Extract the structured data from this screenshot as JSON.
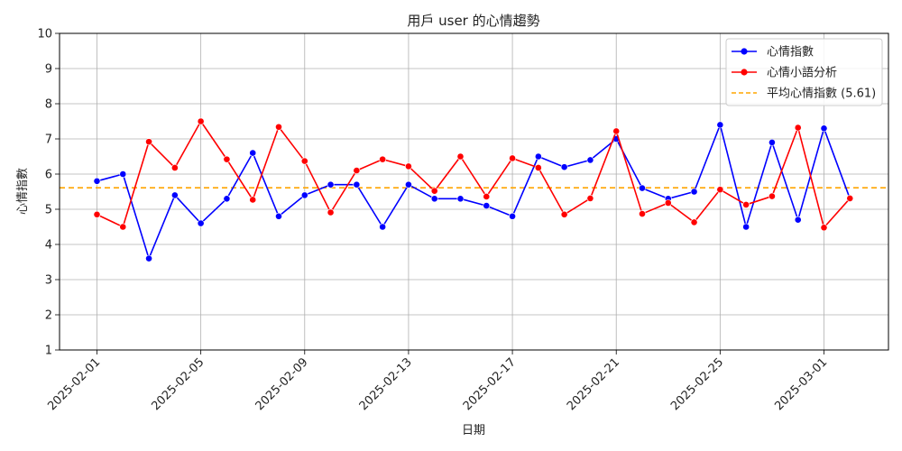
{
  "chart_data": {
    "type": "line",
    "title": "用戶 user 的心情趨勢",
    "xlabel": "日期",
    "ylabel": "心情指數",
    "ylim": [
      1,
      10
    ],
    "yticks": [
      1,
      2,
      3,
      4,
      5,
      6,
      7,
      8,
      9,
      10
    ],
    "x": [
      "2025-02-01",
      "2025-02-02",
      "2025-02-03",
      "2025-02-04",
      "2025-02-05",
      "2025-02-06",
      "2025-02-07",
      "2025-02-08",
      "2025-02-09",
      "2025-02-10",
      "2025-02-11",
      "2025-02-12",
      "2025-02-13",
      "2025-02-14",
      "2025-02-15",
      "2025-02-16",
      "2025-02-17",
      "2025-02-18",
      "2025-02-19",
      "2025-02-20",
      "2025-02-21",
      "2025-02-22",
      "2025-02-23",
      "2025-02-24",
      "2025-02-25",
      "2025-02-26",
      "2025-02-27",
      "2025-02-28",
      "2025-03-01",
      "2025-03-02"
    ],
    "xticks": [
      "2025-02-01",
      "2025-02-05",
      "2025-02-09",
      "2025-02-13",
      "2025-02-17",
      "2025-02-21",
      "2025-02-25",
      "2025-03-01"
    ],
    "series": [
      {
        "name": "心情指數",
        "color": "#0000ff",
        "marker": "circle",
        "values": [
          5.8,
          6.0,
          3.6,
          5.4,
          4.6,
          5.3,
          6.6,
          4.8,
          5.4,
          5.7,
          5.7,
          4.5,
          5.7,
          5.3,
          5.3,
          5.1,
          4.8,
          6.5,
          6.2,
          6.4,
          7.0,
          5.6,
          5.3,
          5.5,
          7.4,
          4.5,
          6.9,
          4.7,
          7.3,
          5.3
        ]
      },
      {
        "name": "心情小語分析",
        "color": "#ff0000",
        "marker": "circle",
        "values": [
          4.85,
          4.5,
          6.92,
          6.18,
          7.5,
          6.42,
          5.27,
          7.34,
          6.37,
          4.91,
          6.1,
          6.42,
          6.22,
          5.52,
          6.5,
          5.36,
          6.45,
          6.18,
          4.85,
          5.31,
          7.22,
          4.87,
          5.18,
          4.63,
          5.56,
          5.13,
          5.37,
          7.32,
          4.48,
          5.31
        ]
      }
    ],
    "reference_line": {
      "label": "平均心情指數 (5.61)",
      "value": 5.61,
      "color": "#ffa500",
      "style": "dashed"
    },
    "grid": true,
    "legend_position": "upper-right"
  }
}
